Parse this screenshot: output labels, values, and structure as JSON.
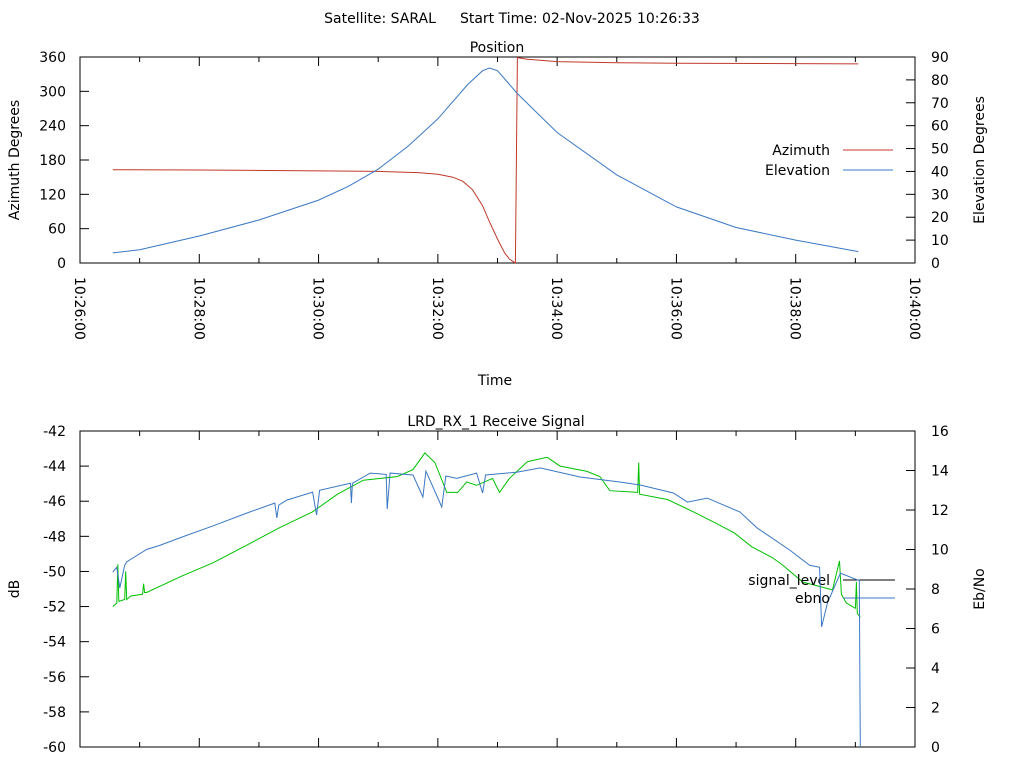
{
  "header": {
    "satellite": "Satellite: SARAL",
    "start_time": "Start Time: 02-Nov-2025 10:26:33"
  },
  "chart_data": [
    {
      "type": "line",
      "title": "Position",
      "xlabel": "Time",
      "ylabel": "Azimuth Degrees",
      "y2label": "Elevation Degrees",
      "xlim": [
        "10:26:00",
        "10:40:00"
      ],
      "ylim": [
        0,
        360
      ],
      "y2lim": [
        0,
        90
      ],
      "xticks": [
        "10:26:00",
        "10:28:00",
        "10:30:00",
        "10:32:00",
        "10:34:00",
        "10:36:00",
        "10:38:00",
        "10:40:00"
      ],
      "yticks": [
        "0",
        "60",
        "120",
        "180",
        "240",
        "300",
        "360"
      ],
      "y2ticks": [
        "0",
        "10",
        "20",
        "30",
        "40",
        "50",
        "60",
        "70",
        "80",
        "90"
      ],
      "grid": false,
      "legend": "right",
      "series": [
        {
          "name": "Azimuth",
          "axis": "y",
          "color": "#c0392b",
          "points": [
            [
              "10:26:33",
              163
            ],
            [
              "10:28:00",
              162.5
            ],
            [
              "10:30:00",
              161
            ],
            [
              "10:31:00",
              160
            ],
            [
              "10:31:40",
              158
            ],
            [
              "10:32:00",
              155
            ],
            [
              "10:32:15",
              150
            ],
            [
              "10:32:25",
              143
            ],
            [
              "10:32:35",
              128
            ],
            [
              "10:32:45",
              100
            ],
            [
              "10:32:52",
              72
            ],
            [
              "10:33:00",
              42
            ],
            [
              "10:33:07",
              18
            ],
            [
              "10:33:12",
              7
            ],
            [
              "10:33:17",
              1
            ],
            [
              "10:33:18",
              0
            ],
            [
              "10:33:19",
              180
            ],
            [
              "10:33:20",
              359
            ],
            [
              "10:33:30",
              356
            ],
            [
              "10:34:00",
              352
            ],
            [
              "10:35:00",
              350
            ],
            [
              "10:36:00",
              349
            ],
            [
              "10:38:00",
              348.5
            ],
            [
              "10:39:03",
              348
            ]
          ]
        },
        {
          "name": "Elevation",
          "axis": "y2",
          "color": "#3a78c3",
          "points": [
            [
              "10:26:33",
              4.4
            ],
            [
              "10:27:00",
              5.8
            ],
            [
              "10:28:00",
              11.8
            ],
            [
              "10:29:00",
              18.8
            ],
            [
              "10:30:00",
              27.5
            ],
            [
              "10:30:30",
              33.5
            ],
            [
              "10:31:00",
              41
            ],
            [
              "10:31:30",
              51
            ],
            [
              "10:32:00",
              63
            ],
            [
              "10:32:30",
              78
            ],
            [
              "10:32:45",
              84
            ],
            [
              "10:32:52",
              85.2
            ],
            [
              "10:33:00",
              84
            ],
            [
              "10:33:20",
              74
            ],
            [
              "10:34:00",
              57
            ],
            [
              "10:35:00",
              38.5
            ],
            [
              "10:36:00",
              24.5
            ],
            [
              "10:37:00",
              15.5
            ],
            [
              "10:38:00",
              10
            ],
            [
              "10:39:03",
              5
            ]
          ]
        }
      ]
    },
    {
      "type": "line",
      "title": "LRD_RX_1 Receive Signal",
      "ylabel": "dB",
      "y2label": "Eb/No",
      "xlim": [
        "10:26:00",
        "10:40:00"
      ],
      "ylim": [
        -60,
        -42
      ],
      "y2lim": [
        0,
        16
      ],
      "yticks": [
        "-60",
        "-58",
        "-56",
        "-54",
        "-52",
        "-50",
        "-48",
        "-46",
        "-44",
        "-42"
      ],
      "y2ticks": [
        "0",
        "2",
        "4",
        "6",
        "8",
        "10",
        "12",
        "14",
        "16"
      ],
      "grid": false,
      "legend": "right",
      "series": [
        {
          "name": "signal_level",
          "axis": "y",
          "color": "#00c000",
          "legend_color": "#000000",
          "points": [
            [
              "10:26:33",
              -52.0
            ],
            [
              "10:26:37",
              -51.8
            ],
            [
              "10:26:38",
              -49.6
            ],
            [
              "10:26:39",
              -51.7
            ],
            [
              "10:26:45",
              -51.6
            ],
            [
              "10:26:46",
              -50.0
            ],
            [
              "10:26:47",
              -51.6
            ],
            [
              "10:26:51",
              -51.4
            ],
            [
              "10:27:03",
              -51.3
            ],
            [
              "10:27:04",
              -50.7
            ],
            [
              "10:27:05",
              -51.2
            ],
            [
              "10:27:07",
              -51.2
            ],
            [
              "10:27:41",
              -50.3
            ],
            [
              "10:28:14",
              -49.5
            ],
            [
              "10:28:48",
              -48.5
            ],
            [
              "10:29:21",
              -47.5
            ],
            [
              "10:29:54",
              -46.6
            ],
            [
              "10:30:19",
              -45.6
            ],
            [
              "10:30:45",
              -44.8
            ],
            [
              "10:31:19",
              -44.6
            ],
            [
              "10:31:35",
              -44.2
            ],
            [
              "10:31:47",
              -43.25
            ],
            [
              "10:31:57",
              -43.8
            ],
            [
              "10:32:09",
              -45.5
            ],
            [
              "10:32:20",
              -45.5
            ],
            [
              "10:32:29",
              -44.9
            ],
            [
              "10:32:39",
              -45.1
            ],
            [
              "10:32:55",
              -44.7
            ],
            [
              "10:33:02",
              -45.5
            ],
            [
              "10:33:12",
              -44.7
            ],
            [
              "10:33:30",
              -43.75
            ],
            [
              "10:33:50",
              -43.5
            ],
            [
              "10:34:03",
              -44.0
            ],
            [
              "10:34:30",
              -44.3
            ],
            [
              "10:34:43",
              -44.6
            ],
            [
              "10:34:53",
              -45.4
            ],
            [
              "10:35:21",
              -45.5
            ],
            [
              "10:35:22",
              -43.8
            ],
            [
              "10:35:23",
              -45.6
            ],
            [
              "10:35:51",
              -45.9
            ],
            [
              "10:36:17",
              -46.6
            ],
            [
              "10:36:38",
              -47.2
            ],
            [
              "10:36:58",
              -47.8
            ],
            [
              "10:37:16",
              -48.6
            ],
            [
              "10:37:36",
              -49.2
            ],
            [
              "10:37:46",
              -49.6
            ],
            [
              "10:38:07",
              -50.6
            ],
            [
              "10:38:37",
              -51.05
            ],
            [
              "10:38:44",
              -49.4
            ],
            [
              "10:38:46",
              -51.3
            ],
            [
              "10:38:51",
              -51.8
            ],
            [
              "10:39:00",
              -52.1
            ],
            [
              "10:39:01",
              -50.6
            ],
            [
              "10:39:02",
              -52.4
            ],
            [
              "10:39:05",
              -52.6
            ]
          ]
        },
        {
          "name": "ebno",
          "axis": "y2",
          "color": "#3a78c3",
          "legend_color": "#3a78c3",
          "points": [
            [
              "10:26:33",
              8.86
            ],
            [
              "10:26:37",
              9.1
            ],
            [
              "10:26:40",
              8.05
            ],
            [
              "10:26:45",
              9.2
            ],
            [
              "10:26:47",
              9.37
            ],
            [
              "10:27:07",
              10.0
            ],
            [
              "10:27:20",
              10.2
            ],
            [
              "10:27:41",
              10.6
            ],
            [
              "10:28:14",
              11.2
            ],
            [
              "10:28:48",
              11.85
            ],
            [
              "10:29:16",
              12.35
            ],
            [
              "10:29:18",
              11.6
            ],
            [
              "10:29:20",
              12.25
            ],
            [
              "10:29:28",
              12.5
            ],
            [
              "10:29:54",
              12.9
            ],
            [
              "10:29:58",
              11.75
            ],
            [
              "10:30:01",
              13.0
            ],
            [
              "10:30:32",
              13.35
            ],
            [
              "10:30:33",
              12.35
            ],
            [
              "10:30:34",
              13.35
            ],
            [
              "10:30:52",
              13.87
            ],
            [
              "10:31:08",
              13.8
            ],
            [
              "10:31:09",
              12.05
            ],
            [
              "10:31:12",
              13.87
            ],
            [
              "10:31:35",
              13.77
            ],
            [
              "10:31:45",
              12.66
            ],
            [
              "10:31:48",
              13.97
            ],
            [
              "10:32:04",
              12.15
            ],
            [
              "10:32:08",
              13.72
            ],
            [
              "10:32:19",
              13.6
            ],
            [
              "10:32:39",
              13.87
            ],
            [
              "10:32:45",
              12.86
            ],
            [
              "10:32:48",
              13.77
            ],
            [
              "10:33:20",
              13.92
            ],
            [
              "10:33:43",
              14.13
            ],
            [
              "10:34:23",
              13.67
            ],
            [
              "10:35:03",
              13.42
            ],
            [
              "10:35:23",
              13.27
            ],
            [
              "10:35:57",
              12.86
            ],
            [
              "10:36:11",
              12.4
            ],
            [
              "10:36:31",
              12.6
            ],
            [
              "10:37:04",
              11.9
            ],
            [
              "10:37:21",
              11.1
            ],
            [
              "10:37:54",
              9.97
            ],
            [
              "10:38:14",
              9.2
            ],
            [
              "10:38:24",
              9.1
            ],
            [
              "10:38:26",
              6.08
            ],
            [
              "10:38:32",
              7.3
            ],
            [
              "10:38:45",
              8.8
            ],
            [
              "10:39:02",
              8.46
            ],
            [
              "10:39:04",
              8.46
            ],
            [
              "10:39:05",
              0
            ]
          ]
        }
      ]
    }
  ]
}
